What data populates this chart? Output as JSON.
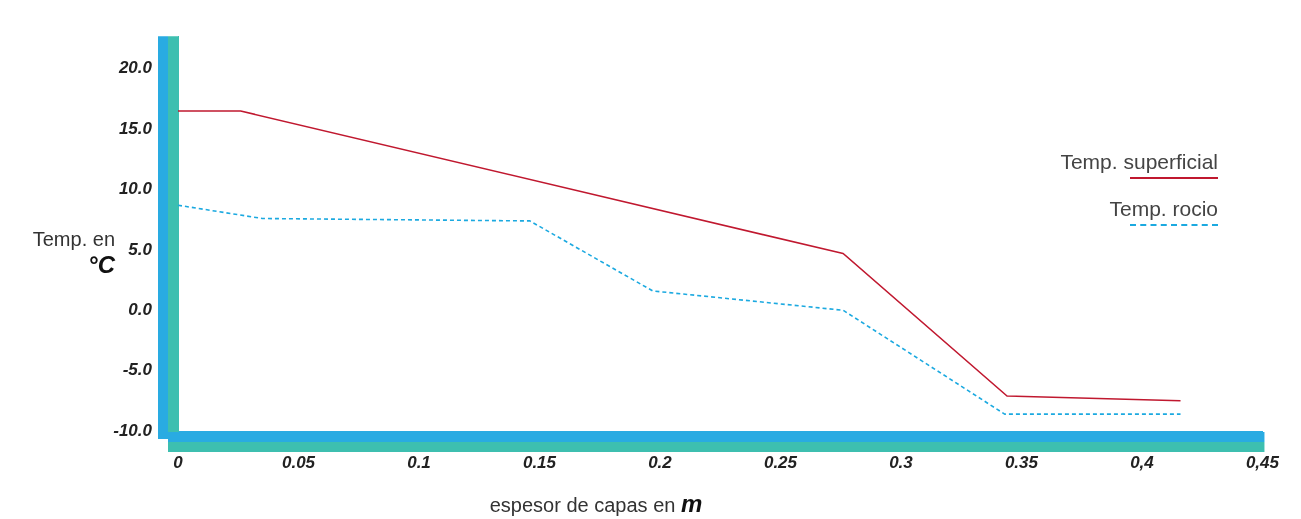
{
  "chart_data": {
    "type": "line",
    "xlabel": "espesor de capas en m",
    "ylabel": "Temp. en °C",
    "xlim": [
      0,
      0.45
    ],
    "ylim": [
      -10,
      22.7
    ],
    "xticks": [
      0,
      0.05,
      0.1,
      0.15,
      0.2,
      0.25,
      0.3,
      0.35,
      {
        "value": 0.4,
        "label": "0,4"
      },
      {
        "value": 0.45,
        "label": "0,45"
      }
    ],
    "yticks": [
      {
        "value": -10,
        "label": "-10.0"
      },
      {
        "value": -5,
        "label": "-5.0"
      },
      {
        "value": 0,
        "label": "0.0"
      },
      {
        "value": 5,
        "label": "5.0"
      },
      {
        "value": 10,
        "label": "10.0"
      },
      {
        "value": 15,
        "label": "15.0"
      },
      {
        "value": 20,
        "label": "20.0"
      }
    ],
    "grid": false,
    "legend": "top right",
    "marker": "none",
    "series": [
      {
        "name": "Temp. superficial",
        "color": "#c0182f",
        "line_style": "solid",
        "x": [
          0,
          0.026,
          0.276,
          0.344,
          0.416
        ],
        "values": [
          16.5,
          16.5,
          4.7,
          -7.1,
          -7.5
        ]
      },
      {
        "name": "Temp. rocio",
        "color": "#1ba9e0",
        "line_style": "dashed",
        "x": [
          0,
          0.035,
          0.146,
          0.197,
          0.276,
          0.343,
          0.416
        ],
        "values": [
          8.7,
          7.6,
          7.4,
          1.6,
          0,
          -8.6,
          -8.6
        ]
      }
    ]
  }
}
